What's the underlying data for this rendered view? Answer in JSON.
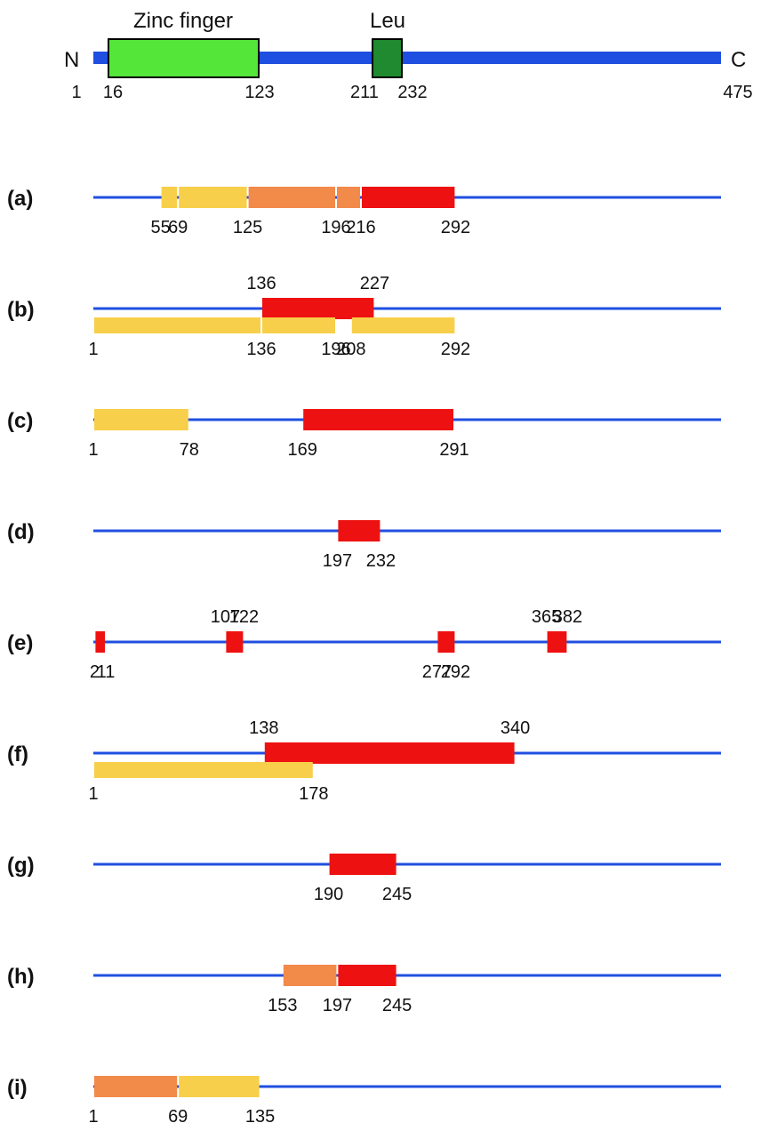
{
  "colors": {
    "backbone": "#1f4fe0",
    "strong": "#ee1111",
    "moderate": "#f28a4a",
    "weak": "#f7cf4a",
    "zinc_finger_fill": "#55e63a",
    "leu_fill": "#1f8a2f",
    "domain_stroke": "#000000"
  },
  "protein": {
    "n_label": "N",
    "c_label": "C",
    "domains": [
      {
        "title": "Zinc finger",
        "start": 16,
        "end": 123,
        "start_label": "16",
        "end_label": "123",
        "color": "zinc_finger_fill"
      },
      {
        "title": "Leu",
        "start": 211,
        "end": 232,
        "start_label": "211",
        "end_label": "232",
        "color": "leu_fill"
      }
    ],
    "tick_labels": [
      {
        "text": "1",
        "pos": 1
      },
      {
        "text": "475",
        "pos": 475
      }
    ]
  },
  "rows": [
    {
      "label": "(a)",
      "segments": [
        {
          "start": 55,
          "end": 69,
          "color": "weak",
          "lane": "on"
        },
        {
          "start": 69,
          "end": 125,
          "color": "weak",
          "lane": "on"
        },
        {
          "start": 125,
          "end": 196,
          "color": "moderate",
          "lane": "on"
        },
        {
          "start": 196,
          "end": 216,
          "color": "moderate",
          "lane": "on"
        },
        {
          "start": 216,
          "end": 292,
          "color": "strong",
          "lane": "on"
        }
      ],
      "labels": [
        {
          "text": "55",
          "pos": 55,
          "side": "below"
        },
        {
          "text": "69",
          "pos": 69,
          "side": "below"
        },
        {
          "text": "125",
          "pos": 125,
          "side": "below"
        },
        {
          "text": "196",
          "pos": 196,
          "side": "below"
        },
        {
          "text": "216",
          "pos": 216,
          "side": "below"
        },
        {
          "text": "292",
          "pos": 292,
          "side": "below"
        }
      ]
    },
    {
      "label": "(b)",
      "segments": [
        {
          "start": 136,
          "end": 227,
          "color": "strong",
          "lane": "on"
        },
        {
          "start": 1,
          "end": 136,
          "color": "weak",
          "lane": "under"
        },
        {
          "start": 136,
          "end": 196,
          "color": "weak",
          "lane": "under"
        },
        {
          "start": 208,
          "end": 292,
          "color": "weak",
          "lane": "under"
        }
      ],
      "labels": [
        {
          "text": "136",
          "pos": 136,
          "side": "above"
        },
        {
          "text": "227",
          "pos": 227,
          "side": "above"
        },
        {
          "text": "1",
          "pos": 1,
          "side": "below2"
        },
        {
          "text": "136",
          "pos": 136,
          "side": "below2"
        },
        {
          "text": "196",
          "pos": 196,
          "side": "below2"
        },
        {
          "text": "208",
          "pos": 208,
          "side": "below2"
        },
        {
          "text": "292",
          "pos": 292,
          "side": "below2"
        }
      ]
    },
    {
      "label": "(c)",
      "segments": [
        {
          "start": 1,
          "end": 78,
          "color": "weak",
          "lane": "on"
        },
        {
          "start": 169,
          "end": 291,
          "color": "strong",
          "lane": "on"
        }
      ],
      "labels": [
        {
          "text": "1",
          "pos": 1,
          "side": "below"
        },
        {
          "text": "78",
          "pos": 78,
          "side": "below"
        },
        {
          "text": "169",
          "pos": 169,
          "side": "below"
        },
        {
          "text": "291",
          "pos": 291,
          "side": "below"
        }
      ]
    },
    {
      "label": "(d)",
      "segments": [
        {
          "start": 197,
          "end": 232,
          "color": "strong",
          "lane": "on"
        }
      ],
      "labels": [
        {
          "text": "197",
          "pos": 197,
          "side": "below"
        },
        {
          "text": "232",
          "pos": 232,
          "side": "below"
        }
      ]
    },
    {
      "label": "(e)",
      "segments": [
        {
          "start": 2,
          "end": 11,
          "color": "strong",
          "lane": "on"
        },
        {
          "start": 107,
          "end": 122,
          "color": "strong",
          "lane": "on"
        },
        {
          "start": 277,
          "end": 292,
          "color": "strong",
          "lane": "on"
        },
        {
          "start": 365,
          "end": 382,
          "color": "strong",
          "lane": "on"
        }
      ],
      "labels": [
        {
          "text": "2",
          "pos": 2,
          "side": "below"
        },
        {
          "text": "11",
          "pos": 11,
          "side": "below"
        },
        {
          "text": "107",
          "pos": 107,
          "side": "above"
        },
        {
          "text": "122",
          "pos": 122,
          "side": "above"
        },
        {
          "text": "277",
          "pos": 277,
          "side": "below"
        },
        {
          "text": "292",
          "pos": 292,
          "side": "below"
        },
        {
          "text": "365",
          "pos": 365,
          "side": "above"
        },
        {
          "text": "382",
          "pos": 382,
          "side": "above"
        }
      ]
    },
    {
      "label": "(f)",
      "segments": [
        {
          "start": 138,
          "end": 340,
          "color": "strong",
          "lane": "on"
        },
        {
          "start": 1,
          "end": 178,
          "color": "weak",
          "lane": "under"
        }
      ],
      "labels": [
        {
          "text": "138",
          "pos": 138,
          "side": "above"
        },
        {
          "text": "340",
          "pos": 340,
          "side": "above"
        },
        {
          "text": "1",
          "pos": 1,
          "side": "below2"
        },
        {
          "text": "178",
          "pos": 178,
          "side": "below2"
        }
      ]
    },
    {
      "label": "(g)",
      "segments": [
        {
          "start": 190,
          "end": 245,
          "color": "strong",
          "lane": "on"
        }
      ],
      "labels": [
        {
          "text": "190",
          "pos": 190,
          "side": "below"
        },
        {
          "text": "245",
          "pos": 245,
          "side": "below"
        }
      ]
    },
    {
      "label": "(h)",
      "segments": [
        {
          "start": 153,
          "end": 197,
          "color": "moderate",
          "lane": "on"
        },
        {
          "start": 197,
          "end": 245,
          "color": "strong",
          "lane": "on"
        }
      ],
      "labels": [
        {
          "text": "153",
          "pos": 153,
          "side": "below"
        },
        {
          "text": "197",
          "pos": 197,
          "side": "below"
        },
        {
          "text": "245",
          "pos": 245,
          "side": "below"
        }
      ]
    },
    {
      "label": "(i)",
      "segments": [
        {
          "start": 1,
          "end": 69,
          "color": "moderate",
          "lane": "on"
        },
        {
          "start": 69,
          "end": 135,
          "color": "weak",
          "lane": "on"
        }
      ],
      "labels": [
        {
          "text": "1",
          "pos": 1,
          "side": "below"
        },
        {
          "text": "69",
          "pos": 69,
          "side": "below"
        },
        {
          "text": "135",
          "pos": 135,
          "side": "below"
        }
      ]
    }
  ]
}
